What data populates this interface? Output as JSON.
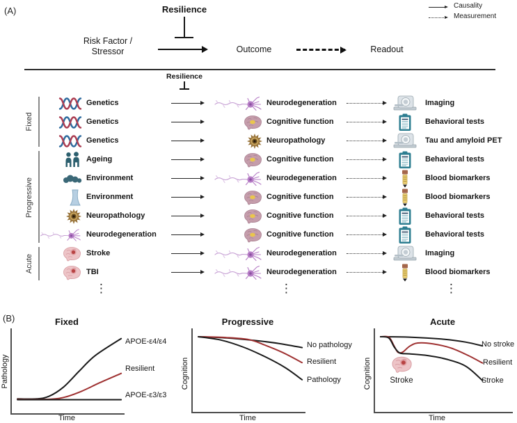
{
  "panel_a": {
    "label": "(A)",
    "legend": {
      "causality": "Causality",
      "measurement": "Measurement"
    },
    "header": {
      "resilience": "Resilience",
      "risk_factor_line1": "Risk Factor /",
      "risk_factor_line2": "Stressor",
      "outcome": "Outcome",
      "readout": "Readout"
    },
    "grid_resilience": "Resilience",
    "groups": [
      {
        "label": "Fixed"
      },
      {
        "label": "Progressive"
      },
      {
        "label": "Acute"
      }
    ],
    "rows": [
      {
        "group": "Fixed",
        "risk": "Genetics",
        "risk_icon": "dna-icon",
        "outcome": "Neurodegeneration",
        "outcome_icon": "neuron-icon",
        "readout": "Imaging",
        "readout_icon": "mri-scanner-icon"
      },
      {
        "group": "Fixed",
        "risk": "Genetics",
        "risk_icon": "dna-icon",
        "outcome": "Cognitive function",
        "outcome_icon": "brain-icon",
        "readout": "Behavioral tests",
        "readout_icon": "clipboard-icon"
      },
      {
        "group": "Fixed",
        "risk": "Genetics",
        "risk_icon": "dna-icon",
        "outcome": "Neuropathology",
        "outcome_icon": "plaque-icon",
        "readout": "Tau and amyloid PET",
        "readout_icon": "mri-scanner-icon"
      },
      {
        "group": "Progressive",
        "risk": "Ageing",
        "risk_icon": "people-icon",
        "outcome": "Cognitive function",
        "outcome_icon": "brain-icon",
        "readout": "Behavioral tests",
        "readout_icon": "clipboard-icon"
      },
      {
        "group": "Progressive",
        "risk": "Environment",
        "risk_icon": "smoke-icon",
        "outcome": "Neurodegeneration",
        "outcome_icon": "neuron-icon",
        "readout": "Blood biomarkers",
        "readout_icon": "blood-vial-icon"
      },
      {
        "group": "Progressive",
        "risk": "Environment",
        "risk_icon": "cooling-tower-icon",
        "outcome": "Cognitive function",
        "outcome_icon": "brain-icon",
        "readout": "Blood biomarkers",
        "readout_icon": "blood-vial-icon"
      },
      {
        "group": "Progressive",
        "risk": "Neuropathology",
        "risk_icon": "plaque-icon",
        "outcome": "Cognitive function",
        "outcome_icon": "brain-icon",
        "readout": "Behavioral tests",
        "readout_icon": "clipboard-icon"
      },
      {
        "group": "Progressive",
        "risk": "Neurodegeneration",
        "risk_icon": "neuron-icon",
        "outcome": "Cognitive function",
        "outcome_icon": "brain-icon",
        "readout": "Behavioral tests",
        "readout_icon": "clipboard-icon"
      },
      {
        "group": "Acute",
        "risk": "Stroke",
        "risk_icon": "stroke-brain-icon",
        "outcome": "Neurodegeneration",
        "outcome_icon": "neuron-icon",
        "readout": "Imaging",
        "readout_icon": "mri-scanner-icon"
      },
      {
        "group": "Acute",
        "risk": "TBI",
        "risk_icon": "stroke-brain-icon",
        "outcome": "Neurodegeneration",
        "outcome_icon": "neuron-icon",
        "readout": "Blood biomarkers",
        "readout_icon": "blood-vial-icon"
      }
    ],
    "ellipsis": "⋮"
  },
  "panel_b": {
    "label": "(B)"
  },
  "chart_data": [
    {
      "type": "line",
      "title": "Fixed",
      "xlabel": "Time",
      "ylabel": "Pathology",
      "axes": "qualitative, no ticks",
      "legend_position": "labels at right end of each line",
      "series": [
        {
          "name": "APOE-ε4/ε4",
          "color": "#1a1a1a",
          "points": [
            [
              0.05,
              0.17
            ],
            [
              0.22,
              0.17
            ],
            [
              0.33,
              0.2
            ],
            [
              0.46,
              0.31
            ],
            [
              0.6,
              0.5
            ],
            [
              0.74,
              0.68
            ],
            [
              0.97,
              0.88
            ]
          ]
        },
        {
          "name": "Resilient",
          "color": "#9e3030",
          "points": [
            [
              0.05,
              0.165
            ],
            [
              0.33,
              0.165
            ],
            [
              0.47,
              0.19
            ],
            [
              0.62,
              0.26
            ],
            [
              0.78,
              0.36
            ],
            [
              0.97,
              0.47
            ]
          ]
        },
        {
          "name": "APOE-ε3/ε3",
          "color": "#1a1a1a",
          "points": [
            [
              0.05,
              0.16
            ],
            [
              0.97,
              0.16
            ]
          ]
        }
      ]
    },
    {
      "type": "line",
      "title": "Progressive",
      "xlabel": "Time",
      "ylabel": "Cognition",
      "axes": "qualitative, no ticks",
      "legend_position": "labels at right end of each line",
      "series": [
        {
          "name": "No pathology",
          "color": "#1a1a1a",
          "points": [
            [
              0.05,
              0.9
            ],
            [
              0.3,
              0.885
            ],
            [
              0.55,
              0.855
            ],
            [
              0.76,
              0.82
            ],
            [
              0.97,
              0.77
            ]
          ]
        },
        {
          "name": "Resilient",
          "color": "#9e3030",
          "points": [
            [
              0.05,
              0.9
            ],
            [
              0.3,
              0.89
            ],
            [
              0.5,
              0.865
            ],
            [
              0.64,
              0.8
            ],
            [
              0.8,
              0.71
            ],
            [
              0.97,
              0.59
            ]
          ]
        },
        {
          "name": "Pathology",
          "color": "#1a1a1a",
          "points": [
            [
              0.05,
              0.9
            ],
            [
              0.25,
              0.86
            ],
            [
              0.45,
              0.775
            ],
            [
              0.65,
              0.655
            ],
            [
              0.82,
              0.53
            ],
            [
              0.97,
              0.385
            ]
          ]
        }
      ]
    },
    {
      "type": "line",
      "title": "Acute",
      "xlabel": "Time",
      "ylabel": "Cognition",
      "axes": "qualitative, no ticks",
      "legend_position": "labels at right end of each line",
      "annotation": {
        "icon": "stroke-brain-icon",
        "label": "Stroke"
      },
      "series": [
        {
          "name": "No stroke",
          "color": "#1a1a1a",
          "points": [
            [
              0.04,
              0.9
            ],
            [
              0.25,
              0.895
            ],
            [
              0.5,
              0.87
            ],
            [
              0.66,
              0.835
            ],
            [
              0.78,
              0.79
            ]
          ]
        },
        {
          "name": "Resilient",
          "color": "#9e3030",
          "points": [
            [
              0.04,
              0.9
            ],
            [
              0.1,
              0.895
            ],
            [
              0.135,
              0.8
            ],
            [
              0.165,
              0.715
            ],
            [
              0.2,
              0.715
            ],
            [
              0.25,
              0.785
            ],
            [
              0.31,
              0.825
            ],
            [
              0.42,
              0.815
            ],
            [
              0.55,
              0.765
            ],
            [
              0.67,
              0.68
            ],
            [
              0.78,
              0.585
            ]
          ]
        },
        {
          "name": "Stroke",
          "color": "#1a1a1a",
          "points": [
            [
              0.04,
              0.9
            ],
            [
              0.1,
              0.885
            ],
            [
              0.14,
              0.775
            ],
            [
              0.18,
              0.705
            ],
            [
              0.25,
              0.695
            ],
            [
              0.38,
              0.675
            ],
            [
              0.52,
              0.63
            ],
            [
              0.66,
              0.545
            ],
            [
              0.78,
              0.375
            ]
          ]
        }
      ]
    }
  ],
  "colors": {
    "line_black": "#1a1a1a",
    "line_red": "#9e3030",
    "axis_gray": "#4d4d4d",
    "divider": "#2b2b2b",
    "bracket_gray": "#8a8a8a"
  }
}
